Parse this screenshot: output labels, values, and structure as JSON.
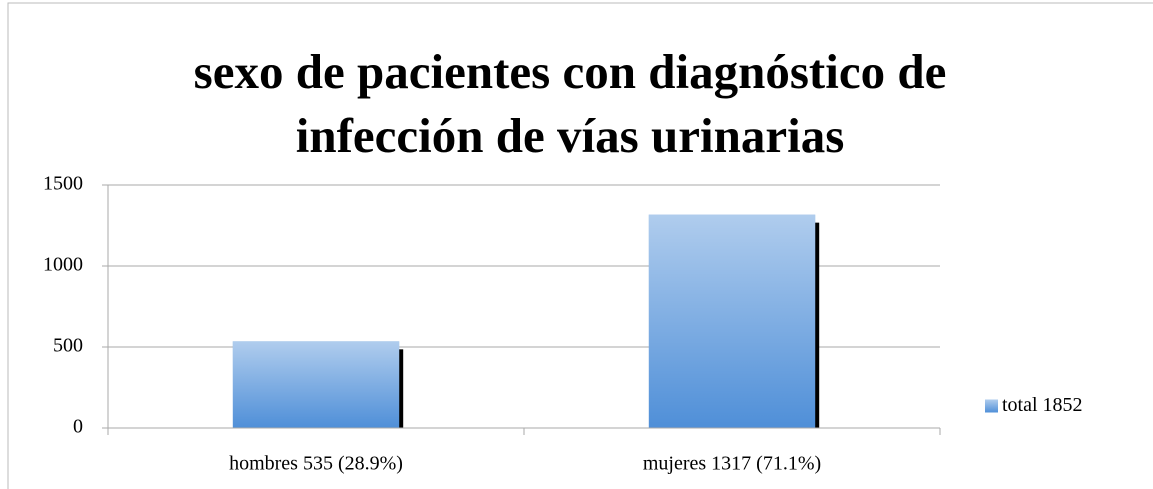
{
  "chart_data": {
    "type": "bar",
    "title": "sexo de pacientes con diagnóstico de infección de vías urinarias",
    "categories": [
      "hombres 535 (28.9%)",
      "mujeres 1317 (71.1%)"
    ],
    "series": [
      {
        "name": "total 1852",
        "color": "#4f8fd8",
        "values": [
          535,
          1317
        ]
      }
    ],
    "ylim": [
      0,
      1500
    ],
    "yticks": [
      0,
      500,
      1000,
      1500
    ],
    "grid": true,
    "legend": "right"
  }
}
